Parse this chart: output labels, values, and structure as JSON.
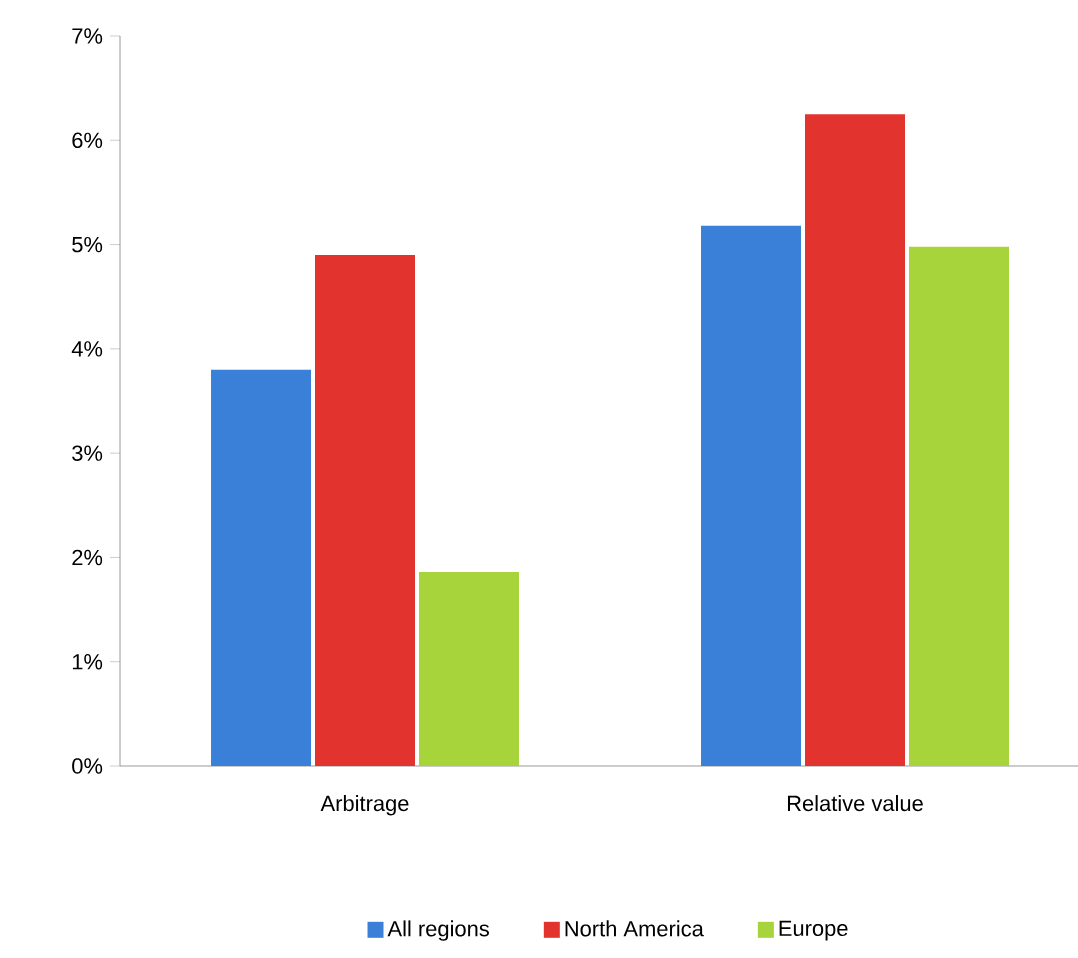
{
  "chart_data": {
    "type": "bar",
    "categories": [
      "Arbitrage",
      "Relative value"
    ],
    "series": [
      {
        "name": "All regions",
        "color": "#3b80d8",
        "values": [
          3.8,
          5.18
        ]
      },
      {
        "name": "North America",
        "color": "#e2332f",
        "values": [
          4.9,
          6.25
        ]
      },
      {
        "name": "Europe",
        "color": "#a6d43a",
        "values": [
          1.86,
          4.98
        ]
      }
    ],
    "ylim": [
      0,
      7
    ],
    "yticks": [
      {
        "value": 0,
        "label": "0%"
      },
      {
        "value": 1,
        "label": "1%"
      },
      {
        "value": 2,
        "label": "2%"
      },
      {
        "value": 3,
        "label": "3%"
      },
      {
        "value": 4,
        "label": "4%"
      },
      {
        "value": 5,
        "label": "5%"
      },
      {
        "value": 6,
        "label": "6%"
      },
      {
        "value": 7,
        "label": "7%"
      }
    ],
    "grid": false,
    "legend": "bottom"
  }
}
